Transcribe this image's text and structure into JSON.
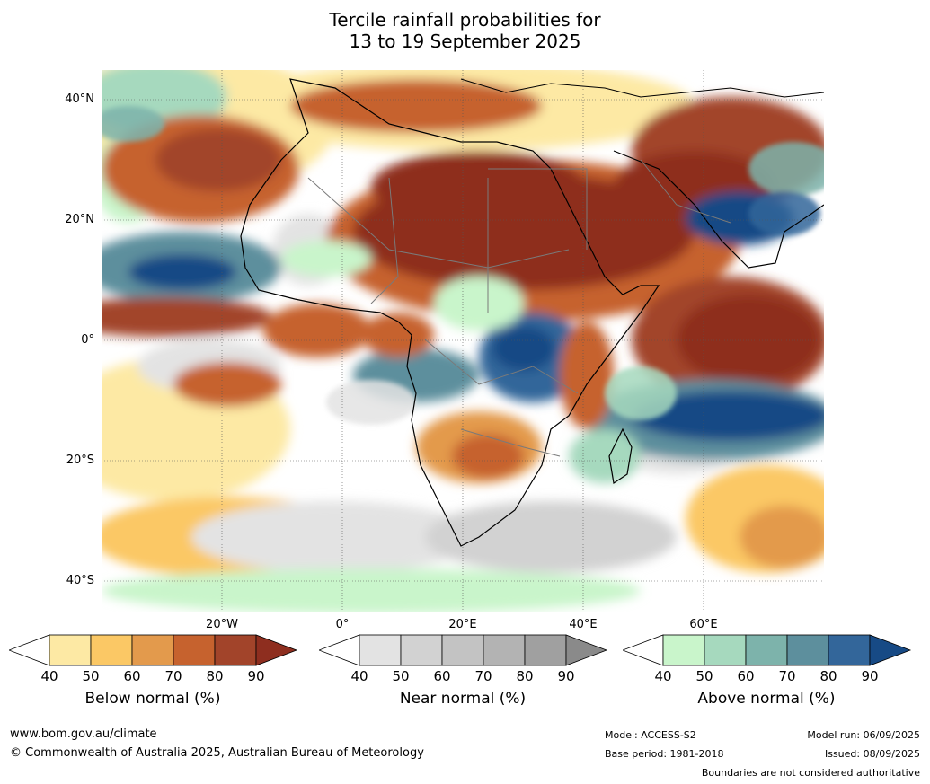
{
  "title_line1": "Tercile rainfall probabilities for",
  "title_line2": "13 to 19 September 2025",
  "lat_labels": [
    "40°N",
    "20°N",
    "0°",
    "20°S",
    "40°S"
  ],
  "lon_labels": [
    "20°W",
    "0°",
    "20°E",
    "40°E",
    "60°E"
  ],
  "colorbars": [
    {
      "label": "Below normal (%)",
      "ticks": [
        "40",
        "50",
        "60",
        "70",
        "80",
        "90"
      ],
      "colors": [
        "#fde9a4",
        "#fbc865",
        "#e39a4c",
        "#c6622e",
        "#a2442a",
        "#8e2e1f"
      ]
    },
    {
      "label": "Near normal (%)",
      "ticks": [
        "40",
        "50",
        "60",
        "70",
        "80",
        "90"
      ],
      "colors": [
        "#e3e3e3",
        "#d2d2d2",
        "#c3c3c3",
        "#b3b3b3",
        "#a0a0a0",
        "#8a8a8a"
      ]
    },
    {
      "label": "Above normal (%)",
      "ticks": [
        "40",
        "50",
        "60",
        "70",
        "80",
        "90"
      ],
      "colors": [
        "#c9f5cb",
        "#a6d9be",
        "#7db3ab",
        "#5d8f9d",
        "#33669a",
        "#174a85"
      ]
    }
  ],
  "footer": {
    "url": "www.bom.gov.au/climate",
    "copyright": "© Commonwealth of Australia 2025, Australian Bureau of Meteorology",
    "model": "Model: ACCESS-S2",
    "base_period": "Base period: 1981-2018",
    "model_run": "Model run: 06/09/2025",
    "issued": "Issued: 08/09/2025",
    "disclaimer": "Boundaries are not considered authoritative"
  }
}
